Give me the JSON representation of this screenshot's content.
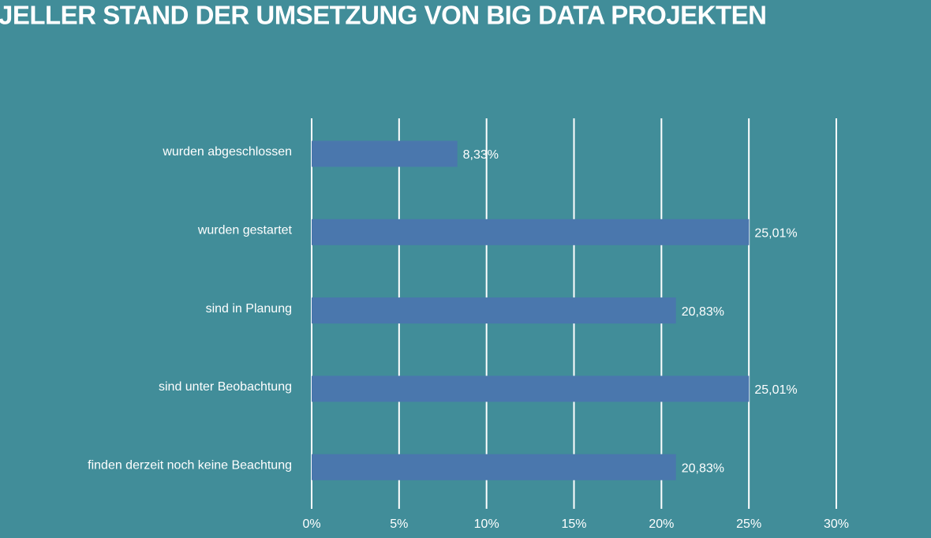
{
  "chart_data": {
    "type": "bar",
    "orientation": "horizontal",
    "title": "JELLER STAND DER UMSETZUNG VON BIG DATA PROJEKTEN",
    "categories": [
      "wurden abgeschlossen",
      "wurden gestartet",
      "sind in Planung",
      "sind unter Beobachtung",
      "finden derzeit noch keine Beachtung"
    ],
    "values": [
      8.33,
      25.01,
      20.83,
      25.01,
      20.83
    ],
    "value_labels": [
      "8,33%",
      "25,01%",
      "20,83%",
      "25,01%",
      "20,83%"
    ],
    "color": "#4a77ad",
    "xlim": [
      0,
      30
    ],
    "xticks": [
      {
        "value": 0,
        "label": "0%"
      },
      {
        "value": 5,
        "label": "5%"
      },
      {
        "value": 10,
        "label": "10%"
      },
      {
        "value": 15,
        "label": "15%"
      },
      {
        "value": 20,
        "label": "20%"
      },
      {
        "value": 25,
        "label": "25%"
      },
      {
        "value": 30,
        "label": "30%"
      }
    ],
    "grid": true
  }
}
